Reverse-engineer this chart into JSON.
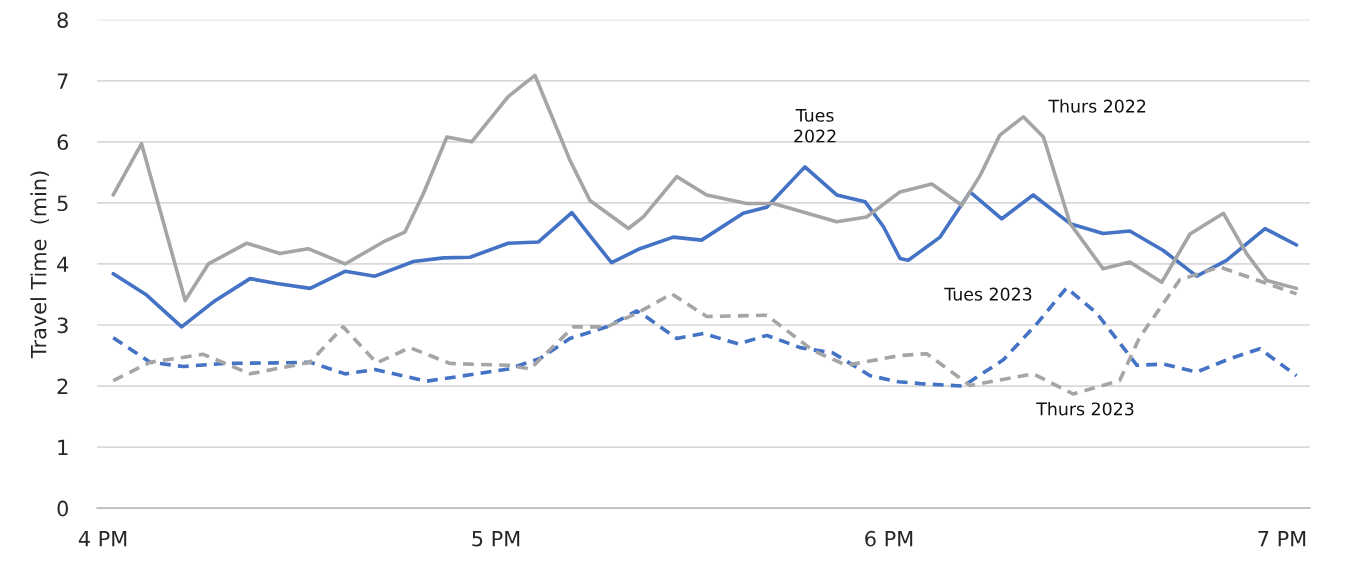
{
  "chart_data": {
    "type": "line",
    "ylabel": "Travel Time  (min)",
    "xlim": [
      3.985,
      7.071
    ],
    "xticks": [
      {
        "value": 4,
        "label": "4 PM"
      },
      {
        "value": 5,
        "label": "5 PM"
      },
      {
        "value": 6,
        "label": "6 PM"
      },
      {
        "value": 7,
        "label": "7 PM"
      }
    ],
    "ylim": [
      0,
      8
    ],
    "yticks": [
      0,
      1,
      2,
      3,
      4,
      5,
      6,
      7,
      8
    ],
    "grid": "y",
    "legend": false,
    "marker": "none",
    "series": [
      {
        "name": "Tues 2022",
        "color": "#4472c4",
        "line_style": "solid",
        "x": [
          4.026,
          4.111,
          4.2,
          4.281,
          4.374,
          4.442,
          4.527,
          4.616,
          4.692,
          4.79,
          4.866,
          4.934,
          5.031,
          5.108,
          5.193,
          5.248,
          5.294,
          5.366,
          5.451,
          5.523,
          5.629,
          5.689,
          5.786,
          5.867,
          5.939,
          5.986,
          6.028,
          6.049,
          6.13,
          6.206,
          6.287,
          6.367,
          6.461,
          6.545,
          6.613,
          6.698,
          6.783,
          6.859,
          6.957,
          7.037
        ],
        "values": [
          3.84,
          3.49,
          2.97,
          3.38,
          3.76,
          3.68,
          3.6,
          3.88,
          3.8,
          4.04,
          4.1,
          4.11,
          4.34,
          4.36,
          4.84,
          4.39,
          4.02,
          4.25,
          4.44,
          4.39,
          4.83,
          4.93,
          5.59,
          5.13,
          5.02,
          4.61,
          4.09,
          4.06,
          4.44,
          5.18,
          4.74,
          5.13,
          4.66,
          4.5,
          4.54,
          4.22,
          3.8,
          4.06,
          4.58,
          4.31
        ]
      },
      {
        "name": "Thurs 2022",
        "color": "#a5a5a5",
        "line_style": "solid",
        "x": [
          4.026,
          4.098,
          4.209,
          4.268,
          4.366,
          4.45,
          4.522,
          4.616,
          4.713,
          4.768,
          4.815,
          4.875,
          4.938,
          5.031,
          5.099,
          5.188,
          5.239,
          5.337,
          5.375,
          5.46,
          5.536,
          5.638,
          5.706,
          5.867,
          5.943,
          6.028,
          6.109,
          6.185,
          6.232,
          6.282,
          6.342,
          6.393,
          6.461,
          6.545,
          6.613,
          6.694,
          6.766,
          6.851,
          6.91,
          6.961,
          7.037
        ],
        "values": [
          5.13,
          5.97,
          3.4,
          4.0,
          4.34,
          4.17,
          4.25,
          4.0,
          4.36,
          4.52,
          5.15,
          6.08,
          6.0,
          6.74,
          7.09,
          5.7,
          5.04,
          4.58,
          4.77,
          5.43,
          5.13,
          4.99,
          4.99,
          4.69,
          4.77,
          5.18,
          5.31,
          4.96,
          5.45,
          6.11,
          6.41,
          6.08,
          4.66,
          3.92,
          4.03,
          3.7,
          4.49,
          4.83,
          4.17,
          3.73,
          3.6
        ]
      },
      {
        "name": "Tues 2023",
        "color": "#4472c4",
        "line_style": "dashed",
        "x": [
          4.026,
          4.12,
          4.204,
          4.306,
          4.442,
          4.527,
          4.616,
          4.692,
          4.824,
          4.951,
          5.031,
          5.112,
          5.188,
          5.282,
          5.358,
          5.383,
          5.46,
          5.528,
          5.617,
          5.689,
          5.774,
          5.858,
          5.952,
          6.024,
          6.079,
          6.189,
          6.291,
          6.376,
          6.452,
          6.529,
          6.631,
          6.698,
          6.783,
          6.868,
          6.944,
          7.037
        ],
        "values": [
          2.79,
          2.39,
          2.32,
          2.37,
          2.38,
          2.39,
          2.2,
          2.27,
          2.08,
          2.2,
          2.28,
          2.45,
          2.78,
          2.97,
          3.23,
          3.13,
          2.78,
          2.86,
          2.69,
          2.83,
          2.63,
          2.54,
          2.17,
          2.07,
          2.04,
          2.0,
          2.43,
          3.02,
          3.61,
          3.19,
          2.34,
          2.36,
          2.23,
          2.45,
          2.61,
          2.17
        ]
      },
      {
        "name": "Thurs 2023",
        "color": "#a5a5a5",
        "line_style": "dashed",
        "x": [
          4.026,
          4.12,
          4.255,
          4.374,
          4.527,
          4.611,
          4.696,
          4.781,
          4.883,
          5.031,
          5.087,
          5.197,
          5.282,
          5.358,
          5.447,
          5.536,
          5.689,
          5.807,
          5.892,
          6.028,
          6.096,
          6.206,
          6.367,
          6.469,
          6.587,
          6.638,
          6.74,
          6.842,
          6.961,
          7.037
        ],
        "values": [
          2.09,
          2.39,
          2.52,
          2.2,
          2.39,
          2.97,
          2.38,
          2.63,
          2.37,
          2.34,
          2.28,
          2.97,
          2.97,
          3.19,
          3.51,
          3.14,
          3.16,
          2.58,
          2.34,
          2.5,
          2.53,
          2.01,
          2.2,
          1.87,
          2.09,
          2.8,
          3.74,
          3.95,
          3.68,
          3.51
        ]
      }
    ]
  }
}
